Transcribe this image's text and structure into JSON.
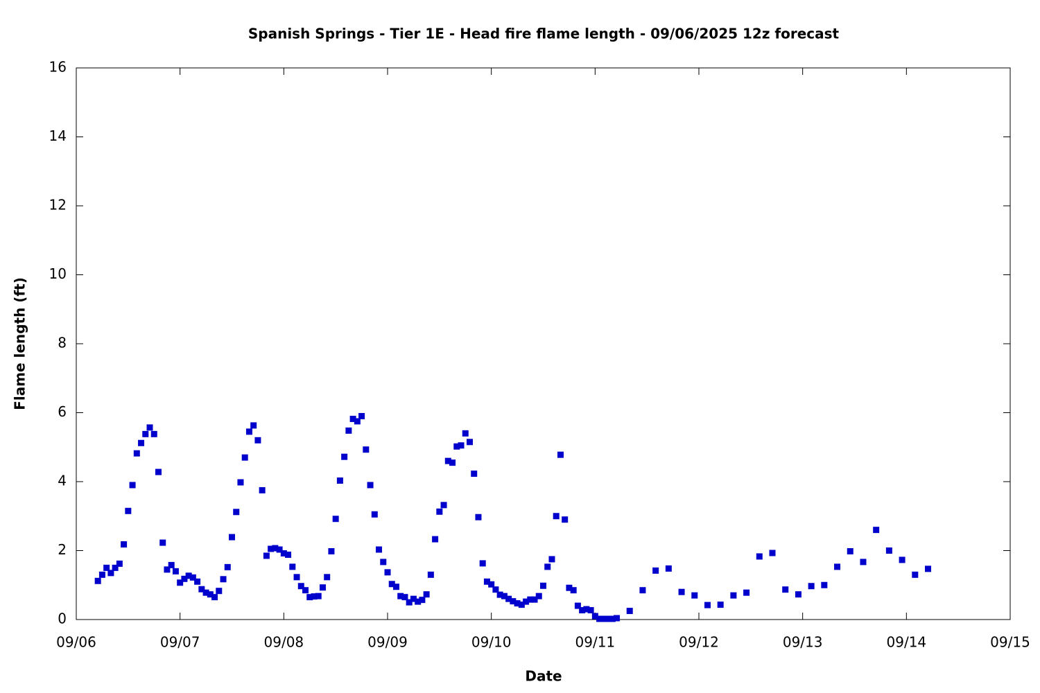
{
  "chart_data": {
    "type": "scatter",
    "title": "Spanish Springs - Tier 1E - Head fire flame length - 09/06/2025 12z forecast",
    "xlabel": "Date",
    "ylabel": "Flame length (ft)",
    "xlim": [
      0,
      216
    ],
    "xticks": [
      {
        "value": 0,
        "label": "09/06"
      },
      {
        "value": 24,
        "label": "09/07"
      },
      {
        "value": 48,
        "label": "09/08"
      },
      {
        "value": 72,
        "label": "09/09"
      },
      {
        "value": 96,
        "label": "09/10"
      },
      {
        "value": 120,
        "label": "09/11"
      },
      {
        "value": 144,
        "label": "09/12"
      },
      {
        "value": 168,
        "label": "09/13"
      },
      {
        "value": 192,
        "label": "09/14"
      },
      {
        "value": 216,
        "label": "09/15"
      }
    ],
    "ylim": [
      0,
      16
    ],
    "yticks": [
      0,
      2,
      4,
      6,
      8,
      10,
      12,
      14,
      16
    ],
    "series": [
      {
        "color": "#0000cc",
        "x": [
          5,
          6,
          7,
          8,
          9,
          10,
          11,
          12,
          13,
          14,
          15,
          16,
          17,
          18,
          19,
          20,
          21,
          22,
          23,
          24,
          25,
          26,
          27,
          28,
          29,
          30,
          31,
          32,
          33,
          34,
          35,
          36,
          37,
          38,
          39,
          40,
          41,
          42,
          43,
          44,
          45,
          46,
          47,
          48,
          49,
          50,
          51,
          52,
          53,
          54,
          55,
          56,
          57,
          58,
          59,
          60,
          61,
          62,
          63,
          64,
          65,
          66,
          67,
          68,
          69,
          70,
          71,
          72,
          73,
          74,
          75,
          76,
          77,
          78,
          79,
          80,
          81,
          82,
          83,
          84,
          85,
          86,
          87,
          88,
          89,
          90,
          91,
          92,
          93,
          94,
          95,
          96,
          97,
          98,
          99,
          100,
          101,
          102,
          103,
          104,
          105,
          106,
          107,
          108,
          109,
          110,
          111,
          112,
          113,
          114,
          115,
          116,
          117,
          118,
          119,
          120,
          121,
          122,
          123,
          124,
          125,
          128,
          131,
          134,
          137,
          140,
          143,
          146,
          149,
          152,
          155,
          158,
          161,
          164,
          167,
          170,
          173,
          176,
          179,
          182,
          185,
          188,
          191,
          194,
          197
        ],
        "values": [
          1.12,
          1.3,
          1.5,
          1.35,
          1.5,
          1.62,
          2.18,
          3.15,
          3.9,
          4.82,
          5.12,
          5.38,
          5.57,
          5.38,
          4.28,
          2.23,
          1.45,
          1.58,
          1.4,
          1.07,
          1.18,
          1.27,
          1.22,
          1.1,
          0.88,
          0.78,
          0.73,
          0.65,
          0.83,
          1.17,
          1.52,
          2.39,
          3.12,
          3.98,
          4.7,
          5.45,
          5.63,
          5.2,
          3.75,
          1.85,
          2.05,
          2.07,
          2.03,
          1.92,
          1.88,
          1.53,
          1.23,
          0.97,
          0.85,
          0.65,
          0.67,
          0.68,
          0.93,
          1.23,
          1.98,
          2.92,
          4.03,
          4.72,
          5.48,
          5.82,
          5.75,
          5.9,
          4.93,
          3.9,
          3.05,
          2.03,
          1.67,
          1.37,
          1.03,
          0.95,
          0.68,
          0.65,
          0.5,
          0.6,
          0.52,
          0.57,
          0.73,
          1.3,
          2.33,
          3.13,
          3.32,
          4.6,
          4.55,
          5.02,
          5.05,
          5.4,
          5.15,
          4.23,
          2.97,
          1.63,
          1.1,
          1.02,
          0.87,
          0.72,
          0.68,
          0.6,
          0.53,
          0.47,
          0.43,
          0.52,
          0.58,
          0.58,
          0.68,
          0.98,
          1.53,
          1.75,
          3.0,
          4.78,
          2.9,
          0.92,
          0.85,
          0.4,
          0.27,
          0.3,
          0.27,
          0.1,
          0.02,
          0.02,
          0.02,
          0.02,
          0.04,
          0.25,
          0.85,
          1.42,
          1.48,
          0.8,
          0.7,
          0.42,
          0.43,
          0.7,
          0.78,
          1.83,
          1.93,
          0.87,
          0.73,
          0.97,
          1.0,
          1.53,
          1.98,
          1.67,
          2.6,
          2.0,
          1.73,
          1.3,
          1.47
        ]
      }
    ]
  }
}
